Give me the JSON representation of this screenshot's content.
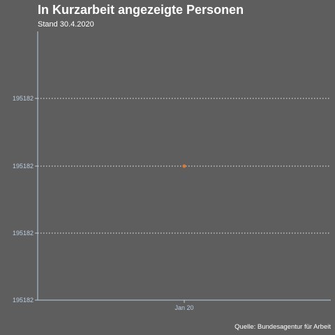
{
  "header": {
    "title": "In Kurzarbeit angezeigte Personen",
    "subtitle": "Stand 30.4.2020"
  },
  "footer": {
    "source": "Quelle: Bundesagentur für Arbeit"
  },
  "colors": {
    "background": "#5e5e5e",
    "axis": "#b9cde0",
    "point": "#e07a2a",
    "grid": "#ffffff"
  },
  "chart_data": {
    "type": "scatter",
    "title": "In Kurzarbeit angezeigte Personen",
    "subtitle": "Stand 30.4.2020",
    "xlabel": "",
    "ylabel": "",
    "x_ticks": [
      "Jan 20"
    ],
    "y_tick_labels": [
      "195182",
      "195182",
      "195182",
      "195182"
    ],
    "series": [
      {
        "points": [
          {
            "x": "Jan 20",
            "y": 195182
          }
        ]
      }
    ],
    "grid": "horizontal dotted",
    "legend": "none"
  }
}
